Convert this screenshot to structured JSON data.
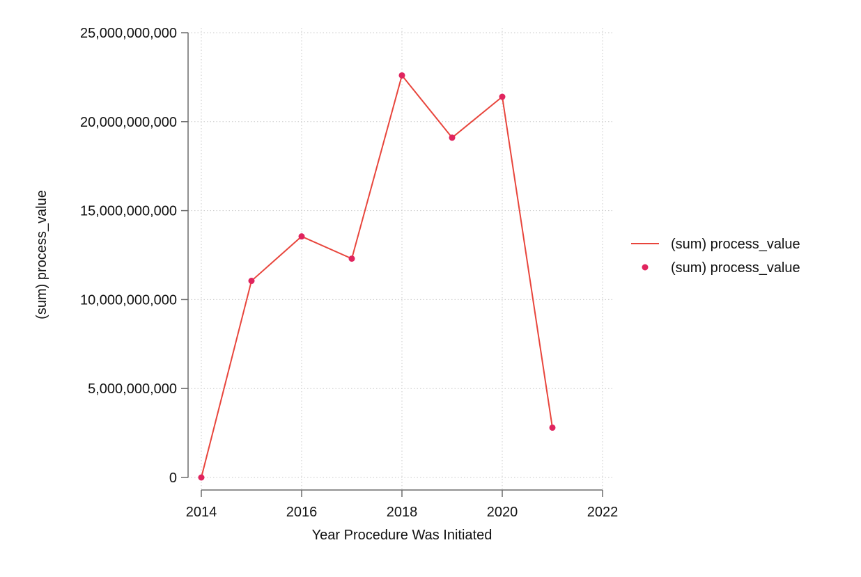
{
  "chart_data": {
    "type": "line",
    "xlabel": "Year Procedure Was Initiated",
    "ylabel": "(sum) process_value",
    "xlim": [
      2014,
      2022
    ],
    "ylim": [
      0,
      25000000000
    ],
    "x_ticks": [
      2014,
      2016,
      2018,
      2020,
      2022
    ],
    "x_tick_labels": [
      "2014",
      "2016",
      "2018",
      "2020",
      "2022"
    ],
    "y_ticks": [
      0,
      5000000000,
      10000000000,
      15000000000,
      20000000000,
      25000000000
    ],
    "y_tick_labels": [
      "0",
      "5,000,000,000",
      "10,000,000,000",
      "15,000,000,000",
      "20,000,000,000",
      "25,000,000,000"
    ],
    "grid": true,
    "legend_position": "right",
    "series": [
      {
        "name": "(sum) process_value",
        "style": "line",
        "color": "#e8453c",
        "x": [
          2014,
          2015,
          2016,
          2017,
          2018,
          2019,
          2020,
          2021
        ],
        "values": [
          0,
          11050000000,
          13550000000,
          12300000000,
          22600000000,
          19100000000,
          21400000000,
          2800000000
        ]
      },
      {
        "name": "(sum) process_value",
        "style": "markers",
        "color": "#e0245e",
        "x": [
          2014,
          2015,
          2016,
          2017,
          2018,
          2019,
          2020,
          2021
        ],
        "values": [
          0,
          11050000000,
          13550000000,
          12300000000,
          22600000000,
          19100000000,
          21400000000,
          2800000000
        ]
      }
    ]
  }
}
